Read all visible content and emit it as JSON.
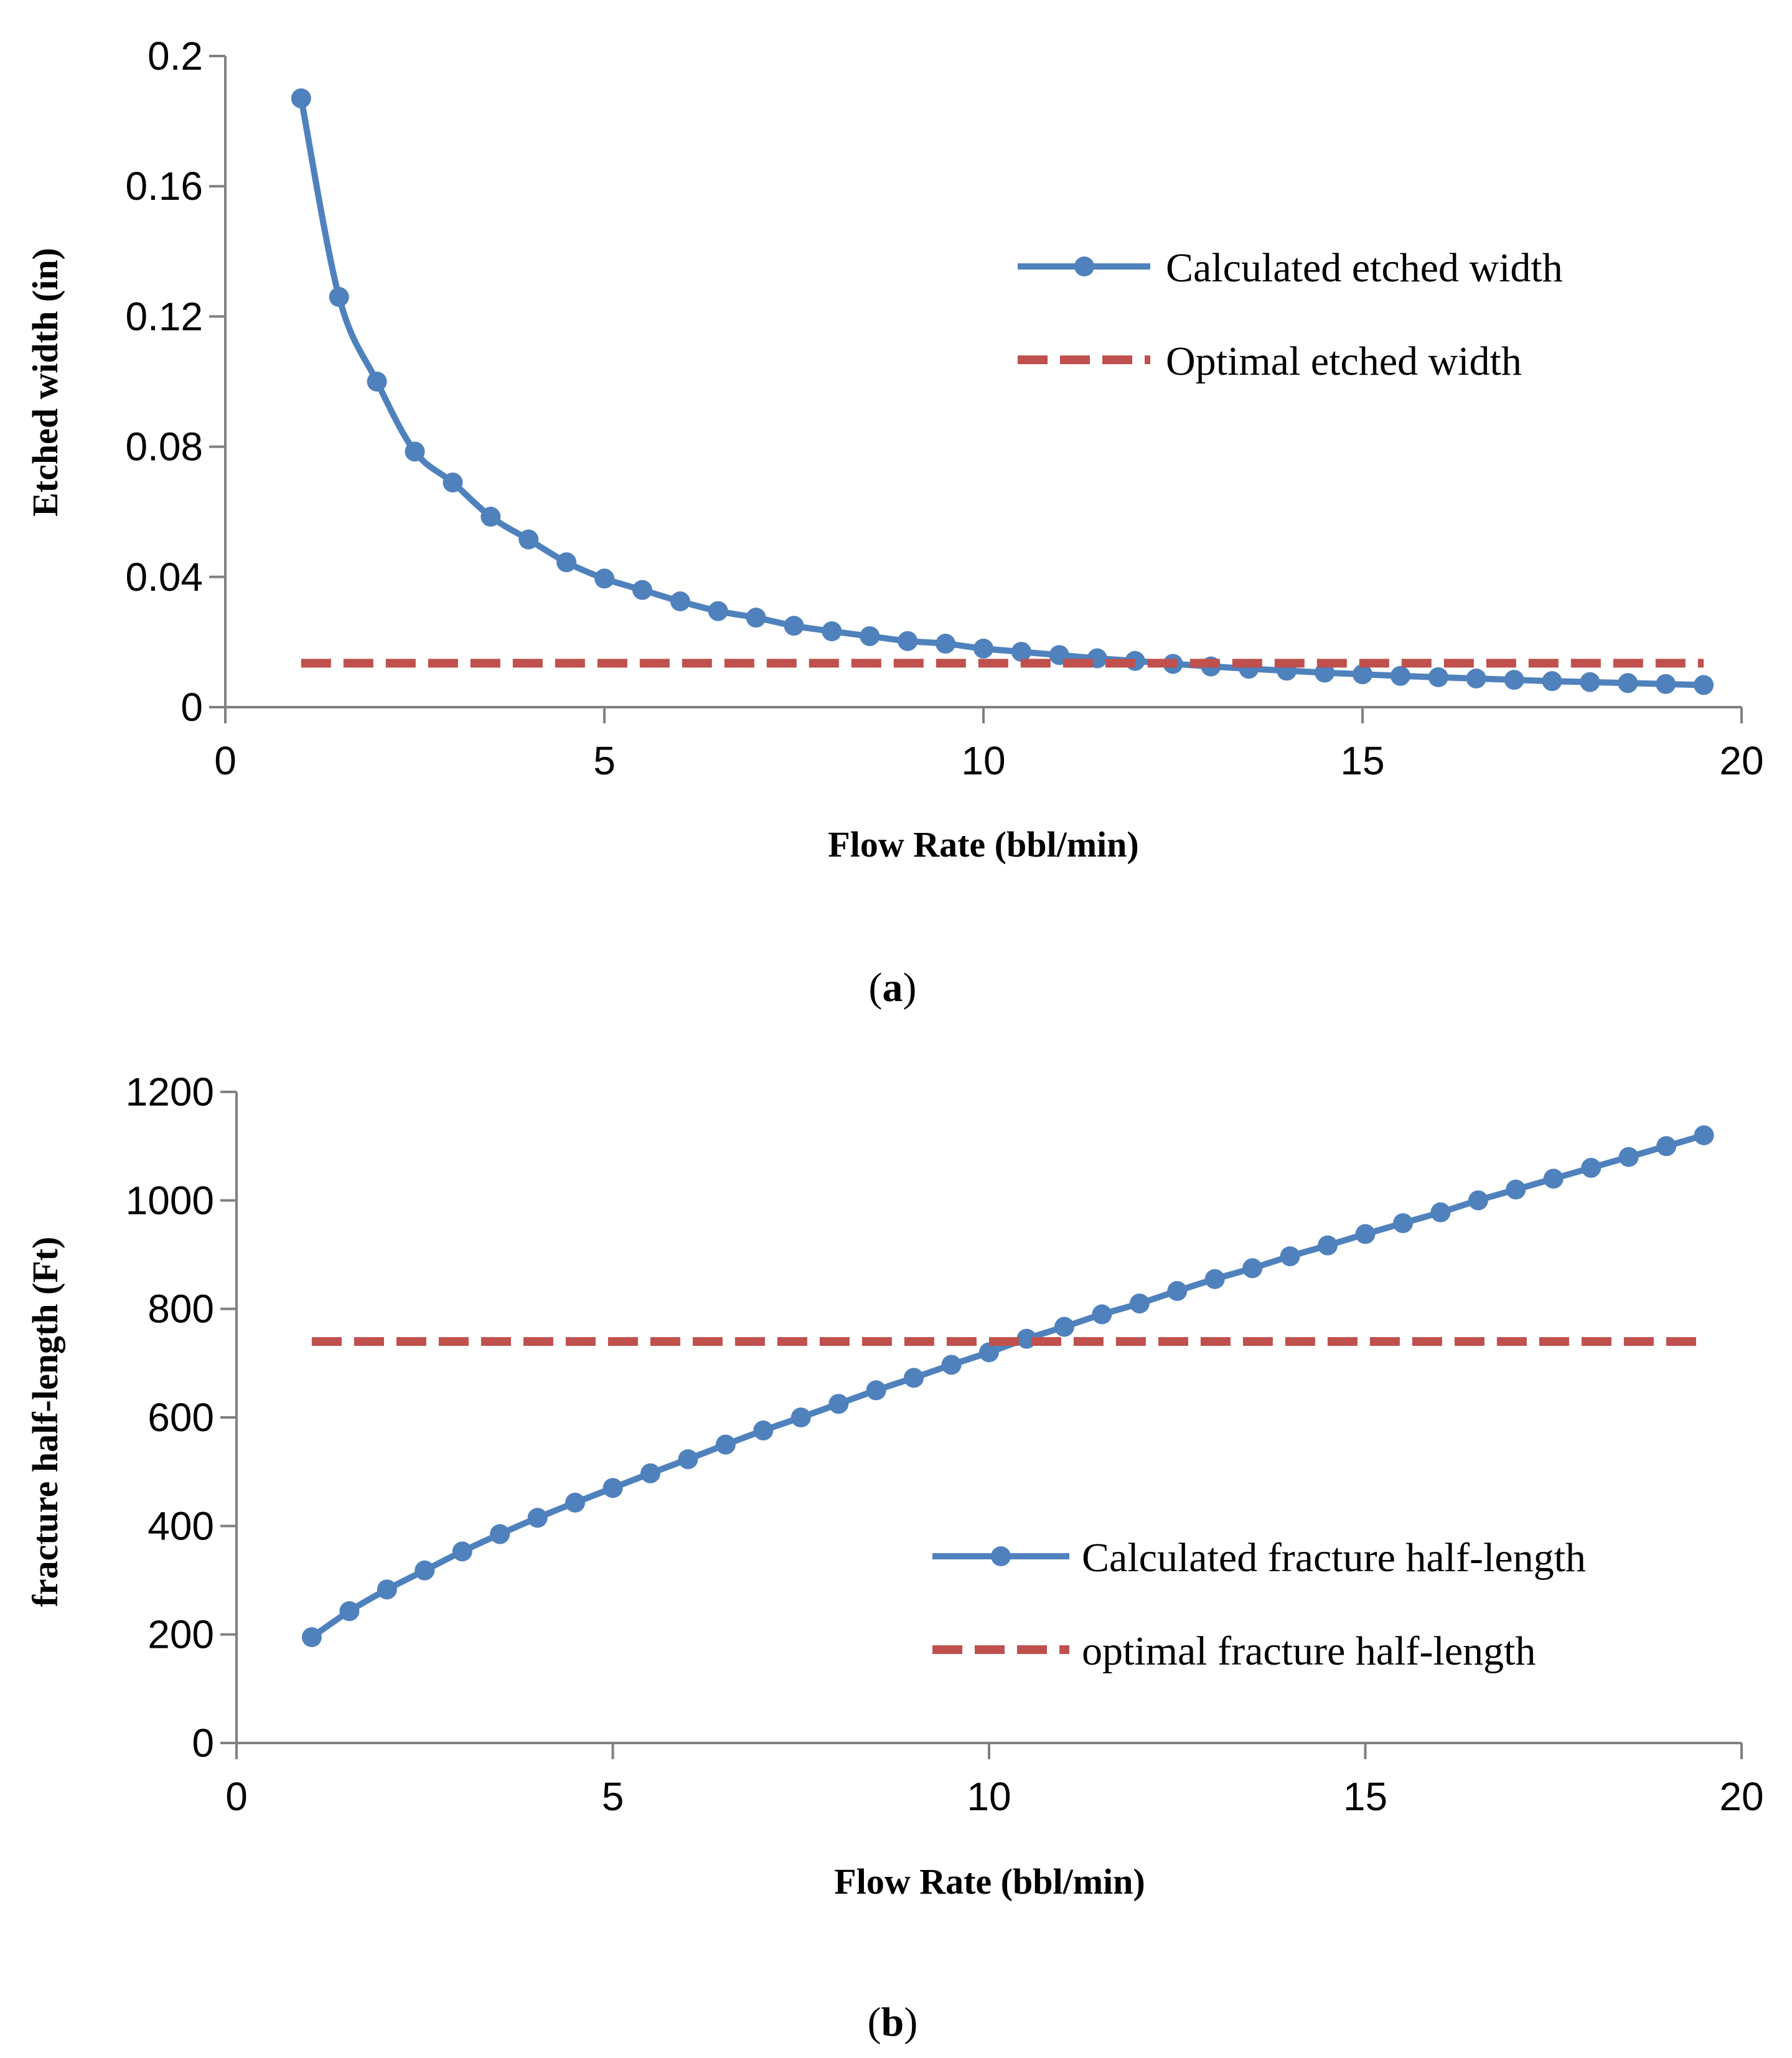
{
  "colors": {
    "calculated": "#4F81BD",
    "optimal": "#C0504D",
    "axis": "#808080",
    "text": "#000000"
  },
  "chart_data": [
    {
      "id": "a",
      "type": "line",
      "panel_label": {
        "open": "(",
        "letter": "a",
        "close": ")"
      },
      "xlabel": "Flow Rate (bbl/min)",
      "ylabel": "Etched width (in)",
      "xlim": [
        0,
        20
      ],
      "ylim": [
        0,
        0.2
      ],
      "xticks": [
        0,
        5,
        10,
        15,
        20
      ],
      "yticks": [
        0,
        0.04,
        0.08,
        0.12,
        0.16,
        0.2
      ],
      "ytick_labels": [
        "0",
        "0.04",
        "0.08",
        "0.12",
        "0.16",
        "0.2"
      ],
      "legend_position": "upper-right",
      "series": [
        {
          "name": "Calculated etched width",
          "style": "solid-markers",
          "color": "#4F81BD",
          "x": [
            1,
            1.5,
            2,
            2.5,
            3,
            3.5,
            4,
            4.5,
            5,
            5.5,
            6,
            6.5,
            7,
            7.5,
            8,
            8.5,
            9,
            9.5,
            10,
            10.5,
            11,
            11.5,
            12,
            12.5,
            13,
            13.5,
            14,
            14.5,
            15,
            15.5,
            16,
            16.5,
            17,
            17.5,
            18,
            18.5,
            19,
            19.5
          ],
          "y": [
            0.187,
            0.126,
            0.1,
            0.0785,
            0.069,
            0.0585,
            0.0515,
            0.0445,
            0.0395,
            0.036,
            0.0325,
            0.0295,
            0.0275,
            0.025,
            0.0233,
            0.0218,
            0.0203,
            0.0195,
            0.018,
            0.017,
            0.016,
            0.015,
            0.0142,
            0.0133,
            0.0125,
            0.0118,
            0.0112,
            0.0106,
            0.0101,
            0.0096,
            0.0092,
            0.0088,
            0.0084,
            0.008,
            0.0077,
            0.0074,
            0.0071,
            0.0068
          ]
        },
        {
          "name": "Optimal etched width",
          "style": "dashed",
          "color": "#C0504D",
          "x": [
            1,
            19.5
          ],
          "y": [
            0.0135,
            0.0135
          ]
        }
      ]
    },
    {
      "id": "b",
      "type": "line",
      "panel_label": {
        "open": "(",
        "letter": "b",
        "close": ")"
      },
      "xlabel": "Flow Rate (bbl/min)",
      "ylabel": "fracture half-length (Ft)",
      "xlim": [
        0,
        20
      ],
      "ylim": [
        0,
        1200
      ],
      "xticks": [
        0,
        5,
        10,
        15,
        20
      ],
      "yticks": [
        0,
        200,
        400,
        600,
        800,
        1000,
        1200
      ],
      "ytick_labels": [
        "0",
        "200",
        "400",
        "600",
        "800",
        "1000",
        "1200"
      ],
      "legend_position": "lower-right",
      "series": [
        {
          "name": "Calculated fracture half-length",
          "style": "solid-markers",
          "color": "#4F81BD",
          "x": [
            1,
            1.5,
            2,
            2.5,
            3,
            3.5,
            4,
            4.5,
            5,
            5.5,
            6,
            6.5,
            7,
            7.5,
            8,
            8.5,
            9,
            9.5,
            10,
            10.5,
            11,
            11.5,
            12,
            12.5,
            13,
            13.5,
            14,
            14.5,
            15,
            15.5,
            16,
            16.5,
            17,
            17.5,
            18,
            18.5,
            19,
            19.5
          ],
          "y": [
            195,
            243,
            283,
            318,
            353,
            385,
            415,
            443,
            470,
            497,
            523,
            550,
            576,
            600,
            625,
            650,
            673,
            697,
            720,
            745,
            767,
            790,
            810,
            833,
            855,
            875,
            897,
            917,
            938,
            958,
            978,
            1000,
            1020,
            1040,
            1060,
            1080,
            1100,
            1120
          ]
        },
        {
          "name": "optimal fracture half-length",
          "style": "dashed",
          "color": "#C0504D",
          "x": [
            1,
            19.5
          ],
          "y": [
            740,
            740
          ]
        }
      ]
    }
  ]
}
